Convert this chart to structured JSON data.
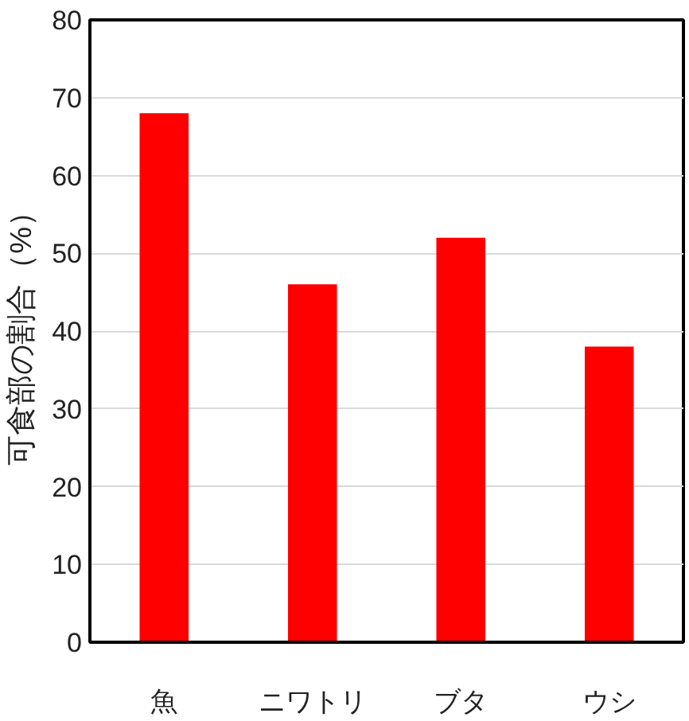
{
  "chart_data": {
    "type": "bar",
    "ylabel": "可食部の割合（%）",
    "categories": [
      "魚",
      "ニワトリ",
      "ブタ",
      "ウシ"
    ],
    "values": [
      68,
      46,
      52,
      38
    ],
    "color": "#ff0000",
    "ylim": [
      0,
      80
    ],
    "yticks": [
      0,
      10,
      20,
      30,
      40,
      50,
      60,
      70,
      80
    ],
    "grid": "y"
  }
}
